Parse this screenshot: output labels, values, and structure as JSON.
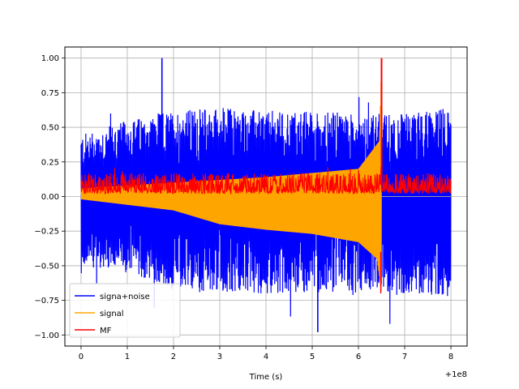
{
  "chart_data": {
    "type": "line",
    "xlabel": "Time (s)",
    "ylabel": "",
    "x_offset_label": "+1e8",
    "xlim": [
      -0.35,
      8.35
    ],
    "ylim": [
      -1.08,
      1.08
    ],
    "x_ticks": [
      0,
      1,
      2,
      3,
      4,
      5,
      6,
      7,
      8
    ],
    "x_tick_labels": [
      "0",
      "1",
      "2",
      "3",
      "4",
      "5",
      "6",
      "7",
      "8"
    ],
    "y_ticks": [
      -1.0,
      -0.75,
      -0.5,
      -0.25,
      0.0,
      0.25,
      0.5,
      0.75,
      1.0
    ],
    "y_tick_labels": [
      "−1.00",
      "−0.75",
      "−0.50",
      "−0.25",
      "0.00",
      "0.25",
      "0.50",
      "0.75",
      "1.00"
    ],
    "grid": true,
    "legend_position": "lower-left",
    "series": [
      {
        "name": "signa+noise",
        "color": "#0000ff",
        "x_range": [
          0,
          8
        ],
        "envelope_upper": [
          [
            0,
            0.45
          ],
          [
            1,
            0.55
          ],
          [
            2,
            0.62
          ],
          [
            3,
            0.65
          ],
          [
            4,
            0.62
          ],
          [
            5,
            0.62
          ],
          [
            6,
            0.6
          ],
          [
            7,
            0.6
          ],
          [
            8,
            0.65
          ]
        ],
        "envelope_lower": [
          [
            0,
            -0.5
          ],
          [
            1,
            -0.55
          ],
          [
            2,
            -0.68
          ],
          [
            3,
            -0.7
          ],
          [
            4,
            -0.7
          ],
          [
            5,
            -0.7
          ],
          [
            6,
            -0.68
          ],
          [
            7,
            -0.7
          ],
          [
            8,
            -0.72
          ]
        ],
        "peaks": [
          [
            1.75,
            1.0
          ],
          [
            5.12,
            -0.98
          ],
          [
            6.5,
            0.97
          ]
        ]
      },
      {
        "name": "signal",
        "color": "#ffa500",
        "x_range": [
          0,
          6.5
        ],
        "description_points": [
          [
            0,
            0.06
          ],
          [
            2,
            0.1
          ],
          [
            4,
            0.14
          ],
          [
            6,
            0.2
          ],
          [
            6.45,
            0.4
          ],
          [
            6.5,
            1.0
          ]
        ],
        "lower_points": [
          [
            0,
            -0.02
          ],
          [
            2,
            -0.1
          ],
          [
            3,
            -0.2
          ],
          [
            4,
            -0.24
          ],
          [
            5,
            -0.27
          ],
          [
            6,
            -0.33
          ],
          [
            6.4,
            -0.45
          ],
          [
            6.5,
            -0.7
          ]
        ]
      },
      {
        "name": "MF",
        "color": "#ff0000",
        "x_range": [
          0,
          8
        ],
        "band": [
          0.02,
          0.17
        ],
        "spike": [
          6.5,
          1.0
        ]
      }
    ]
  }
}
